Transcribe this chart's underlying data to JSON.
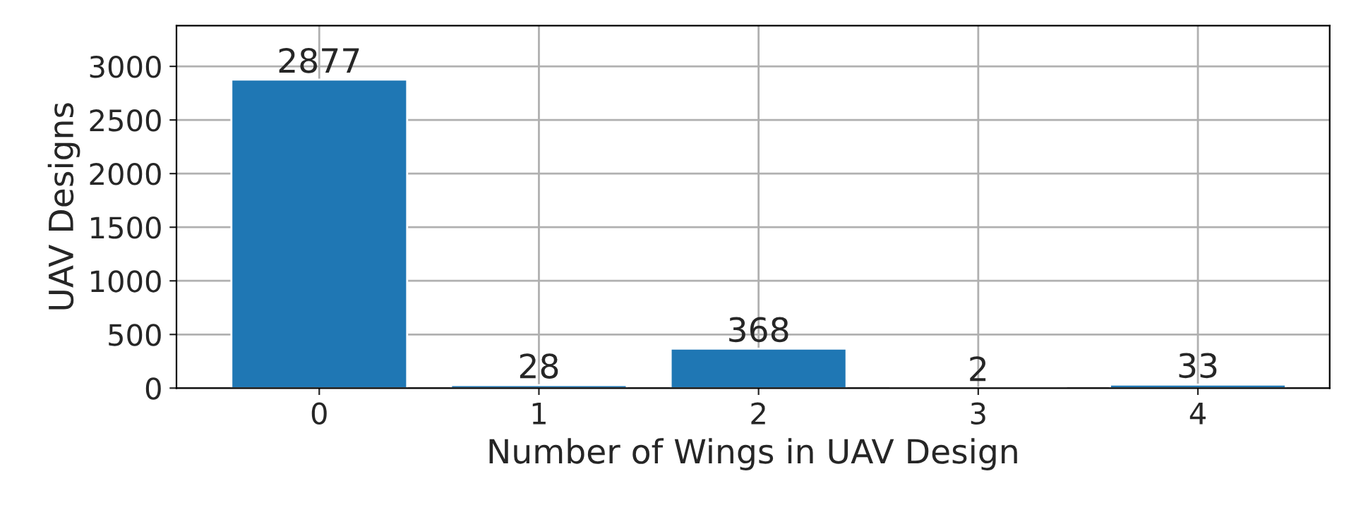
{
  "chart_data": {
    "type": "bar",
    "xlabel": "Number of Wings in UAV Design",
    "ylabel": "UAV Designs",
    "x": [
      0,
      1,
      2,
      3,
      4
    ],
    "values": [
      2877,
      28,
      368,
      2,
      33
    ],
    "color": "#1f77b4",
    "xlim": [
      -0.65,
      4.6
    ],
    "xticks": [
      0,
      1,
      2,
      3,
      4
    ],
    "ylim": [
      0,
      3380
    ],
    "yticks": [
      0,
      500,
      1000,
      1500,
      2000,
      2500,
      3000
    ],
    "grid": true,
    "data_labels": true
  }
}
